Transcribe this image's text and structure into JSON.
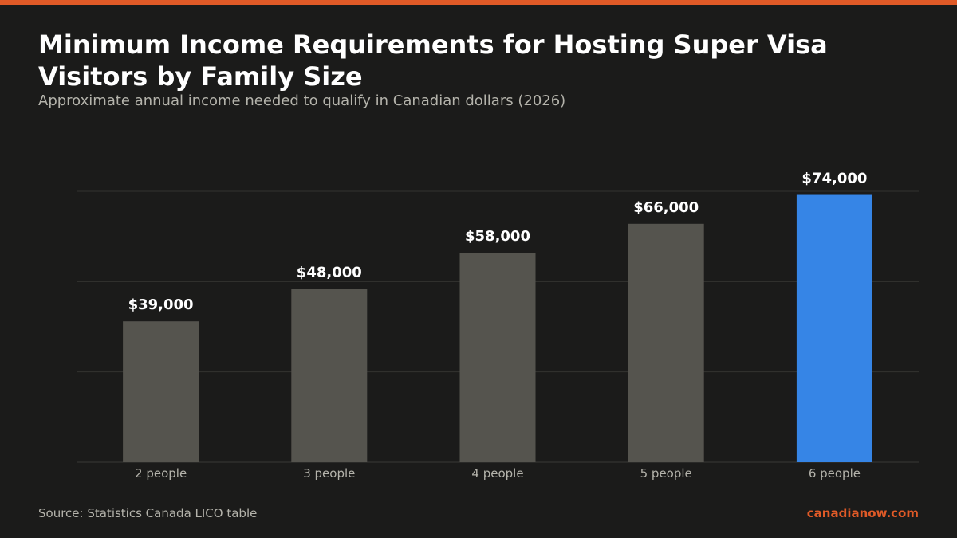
{
  "header": {
    "title": "Minimum Income Requirements for Hosting Super Visa Visitors by Family Size",
    "subtitle": "Approximate annual income needed to qualify in Canadian dollars (2026)"
  },
  "footer": {
    "source": "Source: Statistics Canada LICO table",
    "brand": "canadianow.com"
  },
  "colors": {
    "accent": "#e05a27",
    "bar_default": "#55544e",
    "bar_highlight": "#3685e6",
    "background": "#1b1b1a"
  },
  "chart_data": {
    "type": "bar",
    "categories": [
      "2 people",
      "3 people",
      "4 people",
      "5 people",
      "6 people"
    ],
    "values": [
      39000,
      48000,
      58000,
      66000,
      74000
    ],
    "data_labels": [
      "$39,000",
      "$48,000",
      "$58,000",
      "$66,000",
      "$74,000"
    ],
    "highlight_index": 4,
    "ylim": [
      0,
      75000
    ],
    "gridlines": [
      0,
      25000,
      50000,
      75000
    ],
    "grid": true,
    "xlabel": "",
    "ylabel": ""
  }
}
